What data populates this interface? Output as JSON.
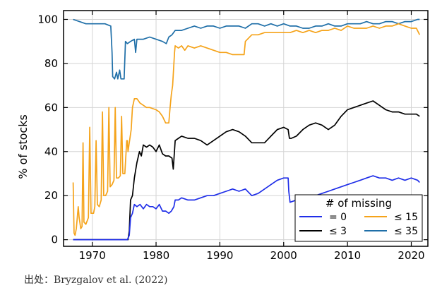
{
  "chart_data": {
    "type": "line",
    "ylabel": "% of stocks",
    "xlabel": "",
    "xlim": [
      1965.5,
      2022.6
    ],
    "ylim": [
      -3,
      104
    ],
    "x_ticks": [
      1970,
      1980,
      1990,
      2000,
      2010,
      2020
    ],
    "y_ticks": [
      0,
      20,
      40,
      60,
      80,
      100
    ],
    "grid": true,
    "legend": {
      "title": "# of missing",
      "placement": "bottom-right",
      "columns": 2
    },
    "series": [
      {
        "name": "= 0",
        "color": "#1f2ee8",
        "points": [
          [
            1967,
            0
          ],
          [
            1975.5,
            0
          ],
          [
            1975.8,
            2
          ],
          [
            1976.0,
            10
          ],
          [
            1976.3,
            12
          ],
          [
            1976.6,
            16
          ],
          [
            1977,
            15
          ],
          [
            1977.5,
            16
          ],
          [
            1978,
            14
          ],
          [
            1978.5,
            16
          ],
          [
            1979,
            15
          ],
          [
            1979.5,
            15
          ],
          [
            1980,
            14
          ],
          [
            1980.5,
            16
          ],
          [
            1981,
            13
          ],
          [
            1981.5,
            13
          ],
          [
            1982,
            12
          ],
          [
            1982.4,
            13
          ],
          [
            1982.8,
            15
          ],
          [
            1983.0,
            18
          ],
          [
            1983.5,
            18
          ],
          [
            1984,
            19
          ],
          [
            1985,
            18
          ],
          [
            1986,
            18
          ],
          [
            1987,
            19
          ],
          [
            1988,
            20
          ],
          [
            1989,
            20
          ],
          [
            1990,
            21
          ],
          [
            1991,
            22
          ],
          [
            1992,
            23
          ],
          [
            1993,
            22
          ],
          [
            1994,
            23
          ],
          [
            1995,
            20
          ],
          [
            1996,
            21
          ],
          [
            1997,
            23
          ],
          [
            1998,
            25
          ],
          [
            1999,
            27
          ],
          [
            2000,
            28
          ],
          [
            2000.7,
            28
          ],
          [
            2000.8,
            22
          ],
          [
            2001,
            17
          ],
          [
            2002,
            18
          ],
          [
            2003,
            19
          ],
          [
            2004,
            20
          ],
          [
            2005,
            20
          ],
          [
            2006,
            21
          ],
          [
            2007,
            22
          ],
          [
            2008,
            23
          ],
          [
            2009,
            24
          ],
          [
            2010,
            25
          ],
          [
            2011,
            26
          ],
          [
            2012,
            27
          ],
          [
            2013,
            28
          ],
          [
            2014,
            29
          ],
          [
            2015,
            28
          ],
          [
            2016,
            28
          ],
          [
            2017,
            27
          ],
          [
            2018,
            28
          ],
          [
            2019,
            27
          ],
          [
            2020,
            28
          ],
          [
            2021,
            27
          ],
          [
            2021.3,
            26
          ]
        ]
      },
      {
        "name": "≤ 15",
        "color": "#f5a31a",
        "points": [
          [
            1967,
            26
          ],
          [
            1967.15,
            3
          ],
          [
            1967.3,
            2
          ],
          [
            1967.5,
            5
          ],
          [
            1967.8,
            15
          ],
          [
            1967.95,
            10
          ],
          [
            1968.2,
            5
          ],
          [
            1968.4,
            6
          ],
          [
            1968.55,
            44
          ],
          [
            1968.7,
            8
          ],
          [
            1969.0,
            7
          ],
          [
            1969.4,
            10
          ],
          [
            1969.6,
            51
          ],
          [
            1969.8,
            12
          ],
          [
            1970.2,
            12
          ],
          [
            1970.4,
            15
          ],
          [
            1970.6,
            45
          ],
          [
            1970.8,
            16
          ],
          [
            1971.1,
            15
          ],
          [
            1971.4,
            18
          ],
          [
            1971.6,
            58
          ],
          [
            1971.8,
            20
          ],
          [
            1972.1,
            20
          ],
          [
            1972.4,
            22
          ],
          [
            1972.6,
            60
          ],
          [
            1972.8,
            24
          ],
          [
            1973.1,
            25
          ],
          [
            1973.4,
            27
          ],
          [
            1973.6,
            60
          ],
          [
            1973.8,
            28
          ],
          [
            1974.1,
            28
          ],
          [
            1974.4,
            29
          ],
          [
            1974.6,
            56
          ],
          [
            1974.8,
            30
          ],
          [
            1975.1,
            30
          ],
          [
            1975.4,
            45
          ],
          [
            1975.5,
            45
          ],
          [
            1975.6,
            40
          ],
          [
            1975.9,
            46
          ],
          [
            1976.1,
            50
          ],
          [
            1976.3,
            60
          ],
          [
            1976.6,
            64
          ],
          [
            1977,
            64
          ],
          [
            1977.5,
            62
          ],
          [
            1978,
            61
          ],
          [
            1978.5,
            60
          ],
          [
            1979,
            60
          ],
          [
            1980,
            59
          ],
          [
            1980.5,
            58
          ],
          [
            1981,
            56
          ],
          [
            1981.5,
            53
          ],
          [
            1982,
            53
          ],
          [
            1982.2,
            60
          ],
          [
            1982.4,
            66
          ],
          [
            1982.6,
            70
          ],
          [
            1982.9,
            85
          ],
          [
            1983.0,
            88
          ],
          [
            1983.5,
            87
          ],
          [
            1984,
            88
          ],
          [
            1984.5,
            86
          ],
          [
            1985,
            88
          ],
          [
            1986,
            87
          ],
          [
            1987,
            88
          ],
          [
            1988,
            87
          ],
          [
            1989,
            86
          ],
          [
            1990,
            85
          ],
          [
            1991,
            85
          ],
          [
            1992,
            84
          ],
          [
            1993,
            84
          ],
          [
            1993.8,
            84
          ],
          [
            1994,
            90
          ],
          [
            1995,
            93
          ],
          [
            1996,
            93
          ],
          [
            1997,
            94
          ],
          [
            1998,
            94
          ],
          [
            1999,
            94
          ],
          [
            2000,
            94
          ],
          [
            2001,
            94
          ],
          [
            2002,
            95
          ],
          [
            2003,
            94
          ],
          [
            2004,
            95
          ],
          [
            2005,
            94
          ],
          [
            2006,
            95
          ],
          [
            2007,
            95
          ],
          [
            2008,
            96
          ],
          [
            2009,
            95
          ],
          [
            2010,
            97
          ],
          [
            2011,
            96
          ],
          [
            2012,
            96
          ],
          [
            2013,
            96
          ],
          [
            2014,
            97
          ],
          [
            2015,
            96
          ],
          [
            2016,
            97
          ],
          [
            2017,
            97
          ],
          [
            2018,
            98
          ],
          [
            2019,
            97
          ],
          [
            2020,
            96
          ],
          [
            2020.8,
            96
          ],
          [
            2021.3,
            93
          ]
        ]
      },
      {
        "name": "≤ 3",
        "color": "#000000",
        "points": [
          [
            1967,
            0
          ],
          [
            1975.6,
            0
          ],
          [
            1975.8,
            4
          ],
          [
            1976.0,
            18
          ],
          [
            1976.3,
            20
          ],
          [
            1976.6,
            28
          ],
          [
            1977,
            35
          ],
          [
            1977.4,
            40
          ],
          [
            1977.7,
            38
          ],
          [
            1978,
            43
          ],
          [
            1978.5,
            42
          ],
          [
            1979,
            43
          ],
          [
            1979.5,
            42
          ],
          [
            1980,
            40
          ],
          [
            1980.5,
            43
          ],
          [
            1981,
            39
          ],
          [
            1981.5,
            38
          ],
          [
            1982,
            38
          ],
          [
            1982.5,
            37
          ],
          [
            1982.7,
            32
          ],
          [
            1983,
            45
          ],
          [
            1983.5,
            46
          ],
          [
            1984,
            47
          ],
          [
            1985,
            46
          ],
          [
            1986,
            46
          ],
          [
            1987,
            45
          ],
          [
            1988,
            43
          ],
          [
            1989,
            45
          ],
          [
            1990,
            47
          ],
          [
            1991,
            49
          ],
          [
            1992,
            50
          ],
          [
            1993,
            49
          ],
          [
            1994,
            47
          ],
          [
            1995,
            44
          ],
          [
            1996,
            44
          ],
          [
            1997,
            44
          ],
          [
            1998,
            47
          ],
          [
            1999,
            50
          ],
          [
            2000,
            51
          ],
          [
            2000.7,
            50
          ],
          [
            2000.9,
            46
          ],
          [
            2001.2,
            46
          ],
          [
            2002,
            47
          ],
          [
            2003,
            50
          ],
          [
            2004,
            52
          ],
          [
            2005,
            53
          ],
          [
            2006,
            52
          ],
          [
            2007,
            50
          ],
          [
            2008,
            52
          ],
          [
            2009,
            56
          ],
          [
            2010,
            59
          ],
          [
            2011,
            60
          ],
          [
            2012,
            61
          ],
          [
            2013,
            62
          ],
          [
            2014,
            63
          ],
          [
            2015,
            61
          ],
          [
            2016,
            59
          ],
          [
            2017,
            58
          ],
          [
            2018,
            58
          ],
          [
            2019,
            57
          ],
          [
            2020,
            57
          ],
          [
            2020.8,
            57
          ],
          [
            2021.3,
            56
          ]
        ]
      },
      {
        "name": "≤ 35",
        "color": "#1f6fa8",
        "points": [
          [
            1967,
            100
          ],
          [
            1968,
            99
          ],
          [
            1969,
            98
          ],
          [
            1970,
            98
          ],
          [
            1971,
            98
          ],
          [
            1972,
            98
          ],
          [
            1972.9,
            97
          ],
          [
            1973.1,
            85
          ],
          [
            1973.2,
            74
          ],
          [
            1973.5,
            73
          ],
          [
            1973.8,
            76
          ],
          [
            1974.0,
            73
          ],
          [
            1974.3,
            77
          ],
          [
            1974.5,
            73
          ],
          [
            1975.0,
            73
          ],
          [
            1975.2,
            90
          ],
          [
            1975.5,
            89
          ],
          [
            1976,
            90
          ],
          [
            1976.6,
            91
          ],
          [
            1976.8,
            85
          ],
          [
            1977,
            91
          ],
          [
            1978,
            91
          ],
          [
            1979,
            92
          ],
          [
            1980,
            91
          ],
          [
            1981,
            90
          ],
          [
            1981.6,
            89
          ],
          [
            1982,
            92
          ],
          [
            1982.5,
            93
          ],
          [
            1983,
            95
          ],
          [
            1984,
            95
          ],
          [
            1985,
            96
          ],
          [
            1986,
            97
          ],
          [
            1987,
            96
          ],
          [
            1988,
            97
          ],
          [
            1989,
            97
          ],
          [
            1990,
            96
          ],
          [
            1991,
            97
          ],
          [
            1992,
            97
          ],
          [
            1993,
            97
          ],
          [
            1994,
            96
          ],
          [
            1995,
            98
          ],
          [
            1996,
            98
          ],
          [
            1997,
            97
          ],
          [
            1998,
            98
          ],
          [
            1999,
            97
          ],
          [
            2000,
            98
          ],
          [
            2001,
            97
          ],
          [
            2002,
            97
          ],
          [
            2003,
            96
          ],
          [
            2004,
            96
          ],
          [
            2005,
            97
          ],
          [
            2006,
            97
          ],
          [
            2007,
            98
          ],
          [
            2008,
            97
          ],
          [
            2009,
            97
          ],
          [
            2010,
            98
          ],
          [
            2011,
            98
          ],
          [
            2012,
            98
          ],
          [
            2013,
            99
          ],
          [
            2014,
            98
          ],
          [
            2015,
            98
          ],
          [
            2016,
            99
          ],
          [
            2017,
            99
          ],
          [
            2018,
            98
          ],
          [
            2019,
            99
          ],
          [
            2020,
            99
          ],
          [
            2021,
            100
          ],
          [
            2021.3,
            100
          ]
        ]
      }
    ]
  },
  "source_note": "出处：Bryzgalov et al. (2022)"
}
